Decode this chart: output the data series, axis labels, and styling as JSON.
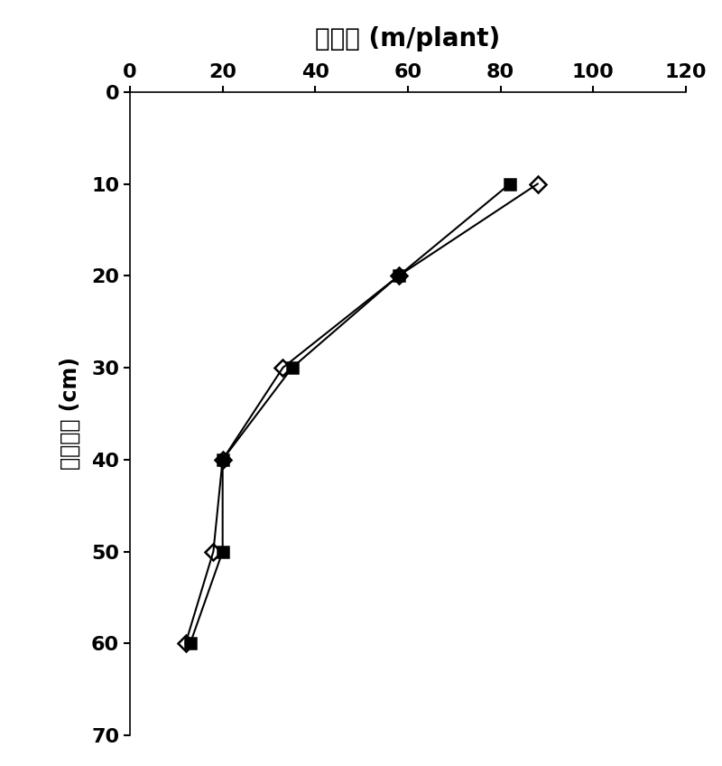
{
  "title": "总根长 (m/plant)",
  "ylabel": "土壤深度 (cm)",
  "xlim": [
    0,
    120
  ],
  "ylim": [
    70,
    0
  ],
  "xticks": [
    0,
    20,
    40,
    60,
    80,
    100,
    120
  ],
  "yticks": [
    0,
    10,
    20,
    30,
    40,
    50,
    60,
    70
  ],
  "series": [
    {
      "label": "filled_square",
      "x": [
        82,
        58,
        35,
        20,
        20,
        13
      ],
      "y": [
        10,
        20,
        30,
        40,
        50,
        60
      ],
      "marker": "s",
      "color": "#000000",
      "fillstyle": "full",
      "markersize": 9,
      "linewidth": 1.5
    },
    {
      "label": "open_diamond",
      "x": [
        88,
        58,
        33,
        20,
        18,
        12
      ],
      "y": [
        10,
        20,
        30,
        40,
        50,
        60
      ],
      "marker": "D",
      "color": "#000000",
      "fillstyle": "none",
      "markersize": 9,
      "linewidth": 1.5
    }
  ],
  "title_fontsize": 20,
  "label_fontsize": 17,
  "tick_fontsize": 16,
  "figsize": [
    8.0,
    8.48
  ],
  "dpi": 100
}
